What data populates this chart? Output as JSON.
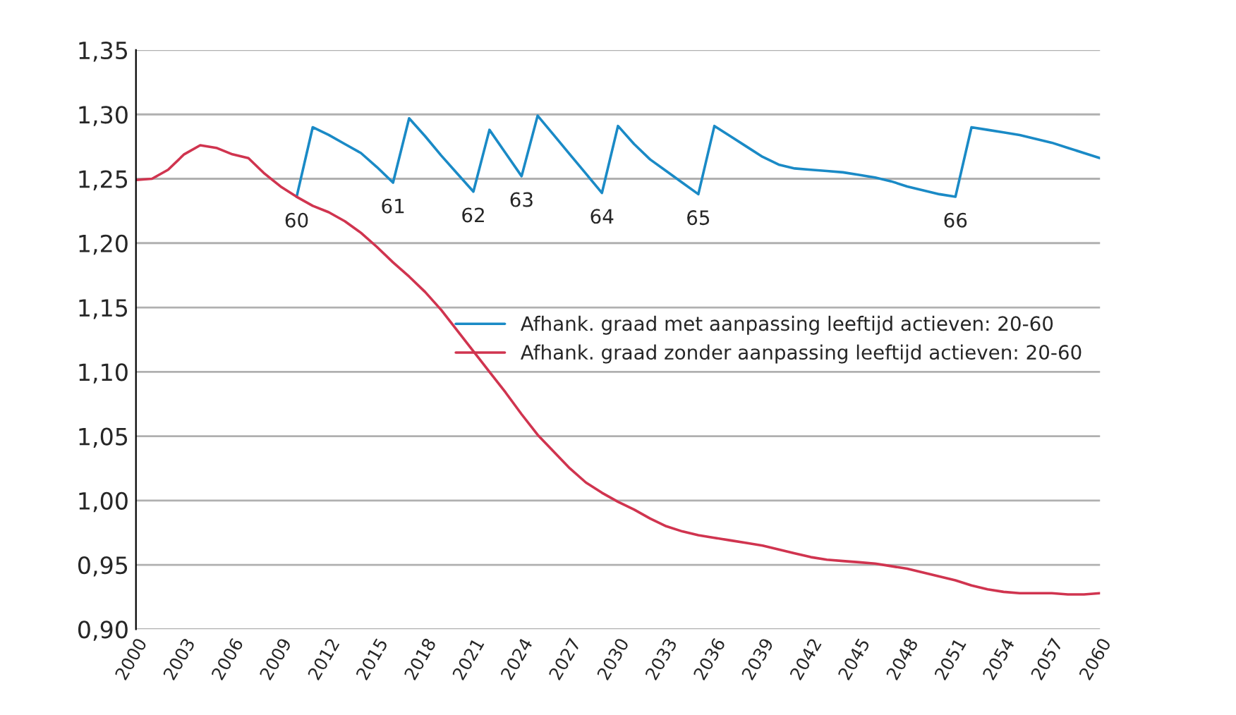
{
  "chart_data": {
    "type": "line",
    "x": [
      2000,
      2001,
      2002,
      2003,
      2004,
      2005,
      2006,
      2007,
      2008,
      2009,
      2010,
      2011,
      2012,
      2013,
      2014,
      2015,
      2016,
      2017,
      2018,
      2019,
      2020,
      2021,
      2022,
      2023,
      2024,
      2025,
      2026,
      2027,
      2028,
      2029,
      2030,
      2031,
      2032,
      2033,
      2034,
      2035,
      2036,
      2037,
      2038,
      2039,
      2040,
      2041,
      2042,
      2043,
      2044,
      2045,
      2046,
      2047,
      2048,
      2049,
      2050,
      2051,
      2052,
      2053,
      2054,
      2055,
      2056,
      2057,
      2058,
      2059,
      2060
    ],
    "series": [
      {
        "name": "Afhank. graad met aanpassing leeftijd actieven: 20-60",
        "color": "#1a8ac6",
        "values": [
          null,
          null,
          null,
          null,
          null,
          null,
          null,
          null,
          null,
          null,
          1.236,
          1.29,
          1.284,
          1.277,
          1.27,
          1.259,
          1.247,
          1.297,
          1.283,
          1.268,
          1.254,
          1.24,
          1.288,
          1.27,
          1.252,
          1.299,
          1.284,
          1.269,
          1.254,
          1.239,
          1.291,
          1.277,
          1.265,
          1.256,
          1.247,
          1.238,
          1.291,
          1.283,
          1.275,
          1.267,
          1.261,
          1.258,
          1.257,
          1.256,
          1.255,
          1.253,
          1.251,
          1.248,
          1.244,
          1.241,
          1.238,
          1.236,
          1.29,
          1.288,
          1.286,
          1.284,
          1.281,
          1.278,
          1.274,
          1.27,
          1.266
        ]
      },
      {
        "name": "Afhank. graad zonder aanpassing leeftijd actieven: 20-60",
        "color": "#d0344f",
        "values": [
          1.249,
          1.25,
          1.257,
          1.269,
          1.276,
          1.274,
          1.269,
          1.266,
          1.254,
          1.244,
          1.236,
          1.229,
          1.224,
          1.217,
          1.208,
          1.197,
          1.185,
          1.174,
          1.162,
          1.148,
          1.132,
          1.116,
          1.1,
          1.084,
          1.067,
          1.051,
          1.038,
          1.025,
          1.014,
          1.006,
          0.999,
          0.993,
          0.986,
          0.98,
          0.976,
          0.973,
          0.971,
          0.969,
          0.967,
          0.965,
          0.962,
          0.959,
          0.956,
          0.954,
          0.953,
          0.952,
          0.951,
          0.949,
          0.947,
          0.944,
          0.941,
          0.938,
          0.934,
          0.931,
          0.929,
          0.928,
          0.928,
          0.928,
          0.927,
          0.927,
          0.928
        ]
      }
    ],
    "xlim": [
      2000,
      2060
    ],
    "xticks": [
      2000,
      2003,
      2006,
      2009,
      2012,
      2015,
      2018,
      2021,
      2024,
      2027,
      2030,
      2033,
      2036,
      2039,
      2042,
      2045,
      2048,
      2051,
      2054,
      2057,
      2060
    ],
    "ylim": [
      0.9,
      1.35
    ],
    "yticks": [
      {
        "value": 0.9,
        "label": "0,90"
      },
      {
        "value": 0.95,
        "label": "0,95"
      },
      {
        "value": 1.0,
        "label": "1,00"
      },
      {
        "value": 1.05,
        "label": "1,05"
      },
      {
        "value": 1.1,
        "label": "1,10"
      },
      {
        "value": 1.15,
        "label": "1,15"
      },
      {
        "value": 1.2,
        "label": "1,20"
      },
      {
        "value": 1.25,
        "label": "1,25"
      },
      {
        "value": 1.3,
        "label": "1,30"
      },
      {
        "value": 1.35,
        "label": "1,35"
      }
    ],
    "annotations": [
      {
        "text": "60",
        "x": 2010,
        "y": 1.236
      },
      {
        "text": "61",
        "x": 2016,
        "y": 1.247
      },
      {
        "text": "62",
        "x": 2021,
        "y": 1.24
      },
      {
        "text": "63",
        "x": 2024,
        "y": 1.252
      },
      {
        "text": "64",
        "x": 2029,
        "y": 1.239
      },
      {
        "text": "65",
        "x": 2035,
        "y": 1.238
      },
      {
        "text": "66",
        "x": 2051,
        "y": 1.236
      }
    ],
    "grid": "y",
    "legend": "right",
    "marker": "none",
    "line_style": "solid"
  }
}
